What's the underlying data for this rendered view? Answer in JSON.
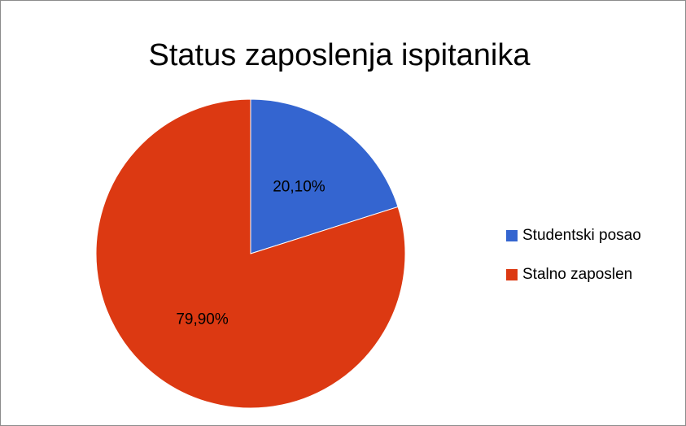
{
  "chart_data": {
    "type": "pie",
    "title": "Status zaposlenja ispitanika",
    "categories": [
      "Studentski posao",
      "Stalno zaposlen"
    ],
    "values": [
      20.1,
      79.9
    ],
    "value_labels": [
      "20,10%",
      "79,90%"
    ],
    "colors": [
      "#3465d0",
      "#dc3912"
    ],
    "legend": "right"
  }
}
